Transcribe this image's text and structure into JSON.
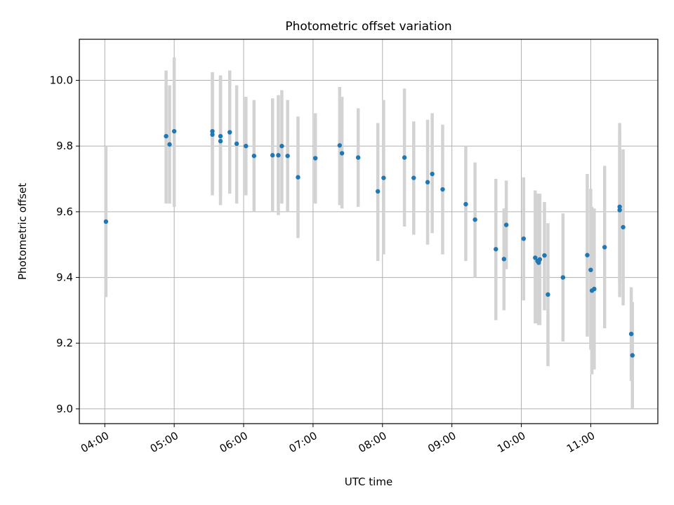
{
  "chart_data": {
    "type": "scatter",
    "title": "Photometric offset variation",
    "xlabel": "UTC time",
    "ylabel": "Photometric offset",
    "x_ticks": [
      "04:00",
      "05:00",
      "06:00",
      "07:00",
      "08:00",
      "09:00",
      "10:00",
      "11:00"
    ],
    "y_ticks": [
      "9.0",
      "9.2",
      "9.4",
      "9.6",
      "9.8",
      "10.0"
    ],
    "xlim": [
      "03:38",
      "11:58"
    ],
    "ylim": [
      8.955,
      10.125
    ],
    "grid": true,
    "colors": {
      "point": "#1f77b4",
      "errorbar": "#d3d3d3",
      "grid": "#b0b0b0"
    },
    "points": [
      {
        "t": "04:01",
        "y": 9.57,
        "lo": 9.34,
        "hi": 9.8
      },
      {
        "t": "04:53",
        "y": 9.83,
        "lo": 9.625,
        "hi": 10.03
      },
      {
        "t": "04:56",
        "y": 9.805,
        "lo": 9.625,
        "hi": 9.985
      },
      {
        "t": "05:00",
        "y": 9.845,
        "lo": 9.615,
        "hi": 10.07
      },
      {
        "t": "05:33",
        "y": 9.845,
        "lo": 9.665,
        "hi": 10.025
      },
      {
        "t": "05:33",
        "y": 9.835,
        "lo": 9.65,
        "hi": 10.02
      },
      {
        "t": "05:40",
        "y": 9.83,
        "lo": 9.645,
        "hi": 10.015
      },
      {
        "t": "05:40",
        "y": 9.815,
        "lo": 9.62,
        "hi": 10.01
      },
      {
        "t": "05:48",
        "y": 9.842,
        "lo": 9.655,
        "hi": 10.03
      },
      {
        "t": "05:54",
        "y": 9.807,
        "lo": 9.625,
        "hi": 9.985
      },
      {
        "t": "06:02",
        "y": 9.8,
        "lo": 9.65,
        "hi": 9.95
      },
      {
        "t": "06:09",
        "y": 9.77,
        "lo": 9.6,
        "hi": 9.94
      },
      {
        "t": "06:25",
        "y": 9.772,
        "lo": 9.6,
        "hi": 9.945
      },
      {
        "t": "06:30",
        "y": 9.772,
        "lo": 9.59,
        "hi": 9.955
      },
      {
        "t": "06:33",
        "y": 9.8,
        "lo": 9.625,
        "hi": 9.97
      },
      {
        "t": "06:38",
        "y": 9.77,
        "lo": 9.6,
        "hi": 9.94
      },
      {
        "t": "06:47",
        "y": 9.705,
        "lo": 9.52,
        "hi": 9.89
      },
      {
        "t": "07:02",
        "y": 9.763,
        "lo": 9.625,
        "hi": 9.9
      },
      {
        "t": "07:23",
        "y": 9.802,
        "lo": 9.62,
        "hi": 9.98
      },
      {
        "t": "07:25",
        "y": 9.778,
        "lo": 9.61,
        "hi": 9.95
      },
      {
        "t": "07:39",
        "y": 9.765,
        "lo": 9.615,
        "hi": 9.915
      },
      {
        "t": "07:56",
        "y": 9.662,
        "lo": 9.45,
        "hi": 9.87
      },
      {
        "t": "08:01",
        "y": 9.703,
        "lo": 9.47,
        "hi": 9.94
      },
      {
        "t": "08:19",
        "y": 9.765,
        "lo": 9.555,
        "hi": 9.975
      },
      {
        "t": "08:27",
        "y": 9.703,
        "lo": 9.53,
        "hi": 9.875
      },
      {
        "t": "08:39",
        "y": 9.69,
        "lo": 9.5,
        "hi": 9.88
      },
      {
        "t": "08:43",
        "y": 9.715,
        "lo": 9.535,
        "hi": 9.9
      },
      {
        "t": "08:52",
        "y": 9.668,
        "lo": 9.47,
        "hi": 9.865
      },
      {
        "t": "09:12",
        "y": 9.623,
        "lo": 9.45,
        "hi": 9.8
      },
      {
        "t": "09:20",
        "y": 9.576,
        "lo": 9.4,
        "hi": 9.75
      },
      {
        "t": "09:38",
        "y": 9.486,
        "lo": 9.27,
        "hi": 9.7
      },
      {
        "t": "09:45",
        "y": 9.456,
        "lo": 9.3,
        "hi": 9.61
      },
      {
        "t": "09:47",
        "y": 9.56,
        "lo": 9.425,
        "hi": 9.695
      },
      {
        "t": "10:02",
        "y": 9.518,
        "lo": 9.33,
        "hi": 9.705
      },
      {
        "t": "10:12",
        "y": 9.46,
        "lo": 9.26,
        "hi": 9.665
      },
      {
        "t": "10:14",
        "y": 9.45,
        "lo": 9.26,
        "hi": 9.655
      },
      {
        "t": "10:15",
        "y": 9.445,
        "lo": 9.255,
        "hi": 9.635
      },
      {
        "t": "10:16",
        "y": 9.455,
        "lo": 9.255,
        "hi": 9.655
      },
      {
        "t": "10:20",
        "y": 9.467,
        "lo": 9.3,
        "hi": 9.63
      },
      {
        "t": "10:23",
        "y": 9.348,
        "lo": 9.13,
        "hi": 9.565
      },
      {
        "t": "10:36",
        "y": 9.4,
        "lo": 9.205,
        "hi": 9.595
      },
      {
        "t": "10:57",
        "y": 9.468,
        "lo": 9.22,
        "hi": 9.715
      },
      {
        "t": "11:00",
        "y": 9.423,
        "lo": 9.18,
        "hi": 9.67
      },
      {
        "t": "11:01",
        "y": 9.36,
        "lo": 9.105,
        "hi": 9.615
      },
      {
        "t": "11:03",
        "y": 9.365,
        "lo": 9.12,
        "hi": 9.61
      },
      {
        "t": "11:12",
        "y": 9.492,
        "lo": 9.245,
        "hi": 9.74
      },
      {
        "t": "11:25",
        "y": 9.605,
        "lo": 9.34,
        "hi": 9.87
      },
      {
        "t": "11:25",
        "y": 9.615,
        "lo": 9.385,
        "hi": 9.845
      },
      {
        "t": "11:28",
        "y": 9.553,
        "lo": 9.315,
        "hi": 9.79
      },
      {
        "t": "11:35",
        "y": 9.228,
        "lo": 9.085,
        "hi": 9.37
      },
      {
        "t": "11:36",
        "y": 9.163,
        "lo": 9.0,
        "hi": 9.325
      }
    ]
  }
}
